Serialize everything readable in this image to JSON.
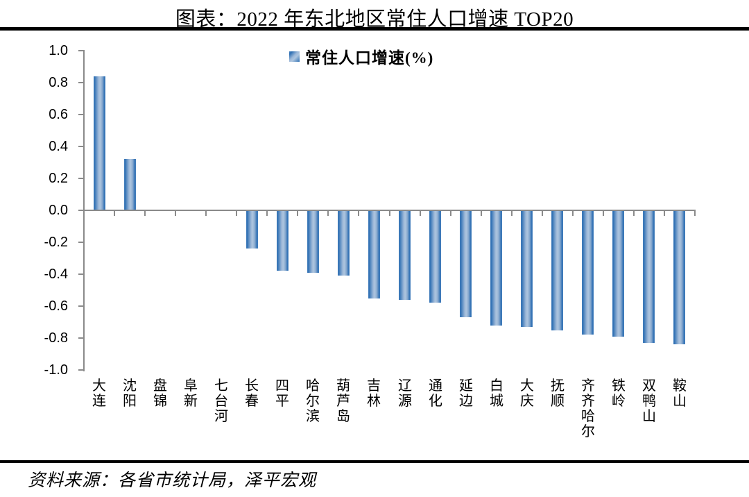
{
  "title": "图表：2022 年东北地区常住人口增速 TOP20",
  "source_note": "资料来源：各省市统计局，泽平宏观",
  "colors": {
    "bar_edge": "#2e6fb3",
    "bar_center": "#adc5df",
    "axis": "#8a8a8a",
    "divider": "#000000",
    "background": "#ffffff"
  },
  "chart_data": {
    "type": "bar",
    "title": "图表：2022 年东北地区常住人口增速 TOP20",
    "legend": "常住人口增速(%)",
    "legend_position": "top-center",
    "grid": false,
    "categories": [
      "大连",
      "沈阳",
      "盘锦",
      "阜新",
      "七台河",
      "长春",
      "四平",
      "哈尔滨",
      "葫芦岛",
      "吉林",
      "辽源",
      "通化",
      "延边",
      "白城",
      "大庆",
      "抚顺",
      "齐齐哈尔",
      "铁岭",
      "双鸭山",
      "鞍山"
    ],
    "values": [
      0.84,
      0.32,
      0.0,
      0.0,
      0.0,
      -0.24,
      -0.38,
      -0.39,
      -0.41,
      -0.55,
      -0.56,
      -0.58,
      -0.67,
      -0.72,
      -0.73,
      -0.75,
      -0.78,
      -0.79,
      -0.83,
      -0.84
    ],
    "ylabel": "",
    "xlabel": "",
    "ylim": [
      -1.0,
      1.0
    ],
    "yticks": [
      "1.0",
      "0.8",
      "0.6",
      "0.4",
      "0.2",
      "0.0",
      "-0.2",
      "-0.4",
      "-0.6",
      "-0.8",
      "-1.0"
    ]
  }
}
